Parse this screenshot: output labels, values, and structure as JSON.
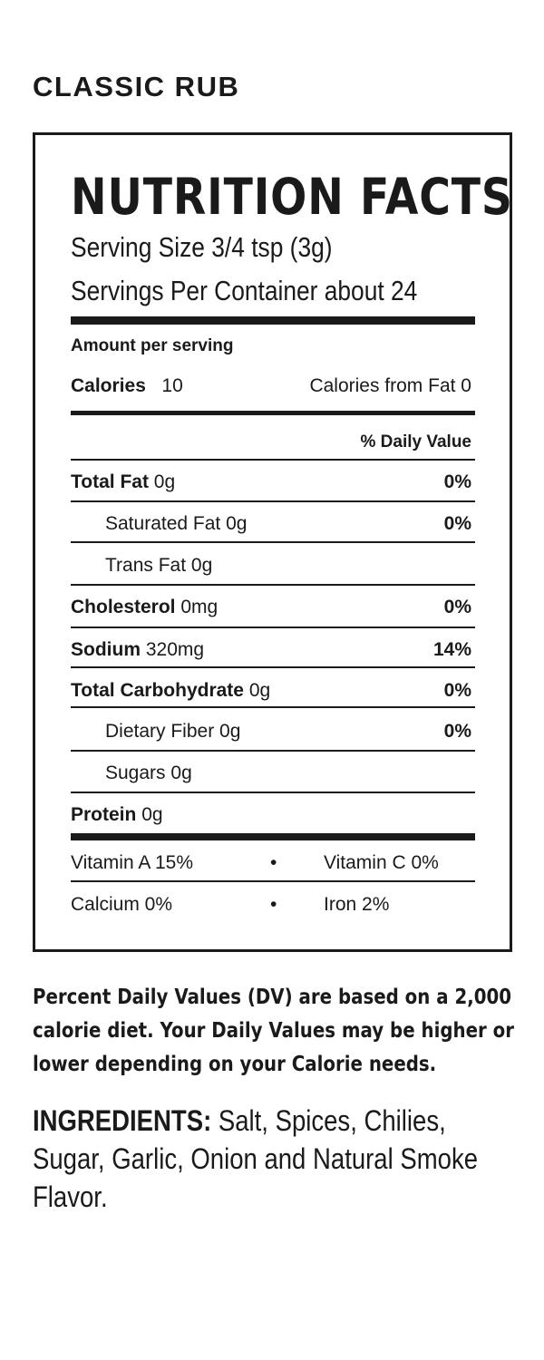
{
  "product_name": "CLASSIC RUB",
  "title": "NUTRITION FACTS",
  "serving_size": "Serving Size 3/4 tsp (3g)",
  "servings_per_container": "Servings Per Container about 24",
  "amount_per_serving": "Amount per serving",
  "calories": {
    "label": "Calories",
    "value": "10",
    "from_fat": "Calories from Fat 0"
  },
  "daily_value_header": "% Daily Value",
  "nutrients": [
    {
      "label": "Total Fat",
      "amount": "0g",
      "dv": "0%"
    },
    {
      "label": "Saturated Fat",
      "amount": "0g",
      "dv": "0%"
    },
    {
      "label": "Trans Fat",
      "amount": "0g",
      "dv": ""
    },
    {
      "label": "Cholesterol",
      "amount": "0mg",
      "dv": "0%"
    },
    {
      "label": "Sodium",
      "amount": "320mg",
      "dv": "14%"
    },
    {
      "label": "Total Carbohydrate",
      "amount": "0g",
      "dv": "0%"
    },
    {
      "label": "Dietary Fiber",
      "amount": "0g",
      "dv": "0%"
    },
    {
      "label": "Sugars",
      "amount": "0g",
      "dv": ""
    },
    {
      "label": "Protein",
      "amount": "0g",
      "dv": ""
    }
  ],
  "vitamins": [
    {
      "left": "Vitamin A  15%",
      "bullet": "•",
      "right": "Vitamin C  0%"
    },
    {
      "left": "Calcium  0%",
      "bullet": "•",
      "right": "Iron  2%"
    }
  ],
  "footnote": "Percent Daily Values (DV) are based on a 2,000 calorie diet. Your Daily Values may be higher or lower depending on your Calorie needs.",
  "ingredients": {
    "label": "INGREDIENTS:",
    "text": "Salt, Spices, Chilies, Sugar, Garlic, Onion and Natural Smoke Flavor."
  }
}
